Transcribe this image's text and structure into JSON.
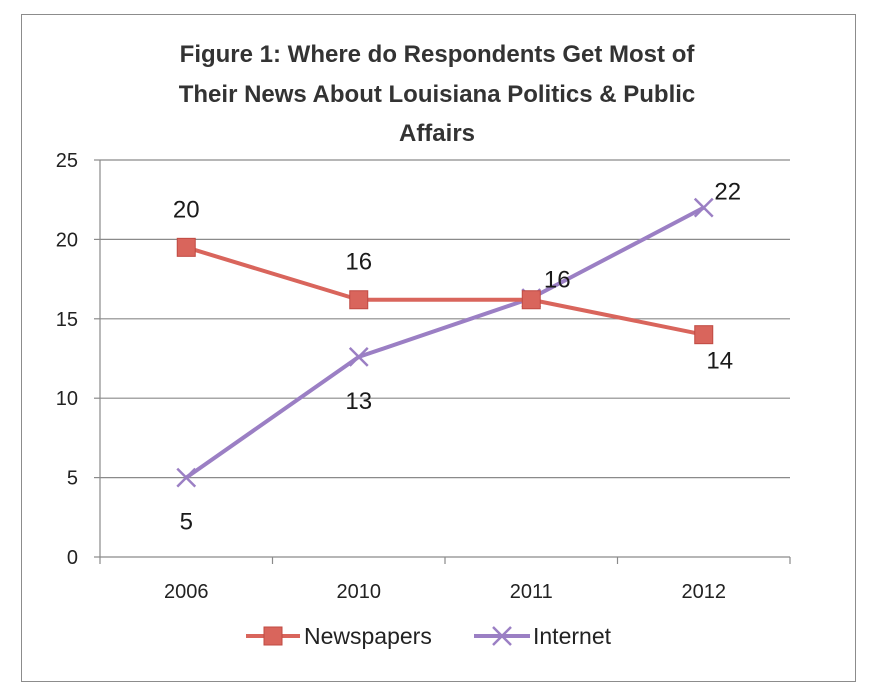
{
  "chart_data": {
    "type": "line",
    "title": "Figure 1: Where do Respondents Get Most of Their News About Louisiana Politics & Public Affairs",
    "title_lines": [
      "Figure 1: Where do Respondents Get Most of",
      "Their News About Louisiana Politics & Public",
      "Affairs"
    ],
    "categories": [
      "2006",
      "2010",
      "2011",
      "2012"
    ],
    "series": [
      {
        "name": "Newspapers",
        "values": [
          19.5,
          16.2,
          16.2,
          14
        ],
        "labels": [
          "20",
          "16",
          "16",
          "14"
        ],
        "color": "#d9655c",
        "marker": "square"
      },
      {
        "name": "Internet",
        "values": [
          5,
          12.6,
          16.3,
          22
        ],
        "labels": [
          "5",
          "13",
          "",
          "22"
        ],
        "color": "#9b7fc4",
        "marker": "x"
      }
    ],
    "ylim": [
      0,
      25
    ],
    "yticks": [
      "0",
      "5",
      "10",
      "15",
      "20",
      "25"
    ],
    "xlabel": "",
    "ylabel": "",
    "grid": true,
    "legend": "bottom"
  }
}
